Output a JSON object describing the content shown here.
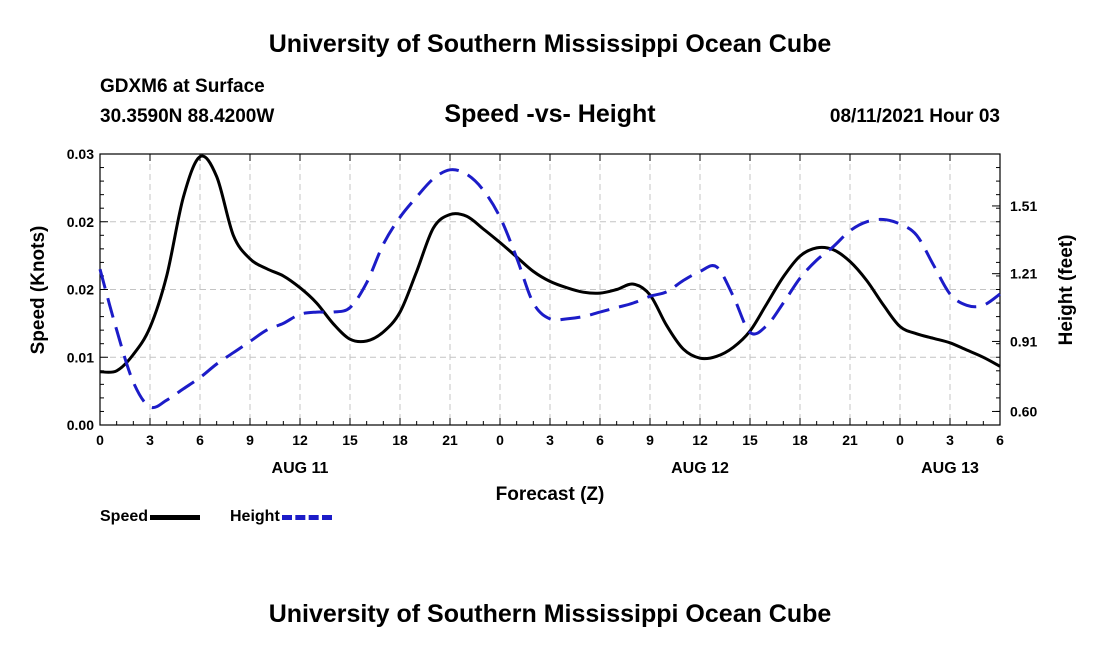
{
  "header": {
    "title": "University of Southern Mississippi Ocean Cube",
    "station": "GDXM6 at Surface",
    "coords": "30.3590N  88.4200W",
    "subtitle": "Speed -vs- Height",
    "datetime": "08/11/2021 Hour 03"
  },
  "footer": {
    "title": "University of Southern Mississippi Ocean Cube"
  },
  "legend": {
    "speed_label": "Speed",
    "height_label": "Height",
    "speed_color": "#000000",
    "height_color": "#1c1cc8"
  },
  "chart_data": {
    "type": "line",
    "title": "Speed -vs- Height",
    "xlabel": "Forecast (Z)",
    "ylabel": "Speed (Knots)",
    "y2label": "Height (feet)",
    "xlim": [
      0,
      54
    ],
    "ylim": [
      0,
      0.03
    ],
    "y2lim": [
      0.54,
      1.74
    ],
    "x_ticks": [
      0,
      3,
      6,
      9,
      12,
      15,
      18,
      21,
      24,
      27,
      30,
      33,
      36,
      39,
      42,
      45,
      48,
      51,
      54
    ],
    "x_tick_labels": [
      "0",
      "3",
      "6",
      "9",
      "12",
      "15",
      "18",
      "21",
      "0",
      "3",
      "6",
      "9",
      "12",
      "15",
      "18",
      "21",
      "0",
      "3",
      "6"
    ],
    "y_ticks": [
      0,
      0.0075,
      0.015,
      0.0225,
      0.03
    ],
    "y_tick_labels": [
      "0.00",
      "0.01",
      "0.02",
      "0.02",
      "0.03"
    ],
    "y2_ticks": [
      0.6,
      0.91,
      1.21,
      1.51
    ],
    "y2_tick_labels": [
      "0.60",
      "0.91",
      "1.21",
      "1.51"
    ],
    "date_labels": [
      {
        "x": 12,
        "label": "AUG 11"
      },
      {
        "x": 36,
        "label": "AUG 12"
      },
      {
        "x": 51,
        "label": "AUG 13"
      }
    ],
    "series": [
      {
        "name": "Speed",
        "axis": "left",
        "style": "solid",
        "x": [
          0,
          1,
          2,
          3,
          4,
          5,
          6,
          7,
          8,
          9,
          10,
          11,
          12,
          13,
          14,
          15,
          16,
          17,
          18,
          19,
          20,
          21,
          22,
          23,
          24,
          25,
          26,
          27,
          28,
          29,
          30,
          31,
          32,
          33,
          34,
          35,
          36,
          37,
          38,
          39,
          40,
          41,
          42,
          43,
          44,
          45,
          46,
          47,
          48,
          49,
          50,
          51,
          52,
          53,
          54
        ],
        "values": [
          0.0059,
          0.006,
          0.0078,
          0.0108,
          0.0165,
          0.0252,
          0.0297,
          0.0275,
          0.021,
          0.0184,
          0.0173,
          0.0165,
          0.0152,
          0.0135,
          0.0112,
          0.0095,
          0.0093,
          0.0103,
          0.0125,
          0.017,
          0.0218,
          0.0233,
          0.0231,
          0.0217,
          0.0202,
          0.0186,
          0.017,
          0.0159,
          0.0152,
          0.0147,
          0.0146,
          0.015,
          0.0156,
          0.0144,
          0.011,
          0.0084,
          0.0074,
          0.0076,
          0.0086,
          0.0104,
          0.0134,
          0.0164,
          0.0187,
          0.0196,
          0.0194,
          0.0181,
          0.016,
          0.0133,
          0.0109,
          0.0101,
          0.0096,
          0.0091,
          0.0083,
          0.0075,
          0.0065
        ]
      },
      {
        "name": "Height",
        "axis": "right",
        "style": "dashed",
        "x": [
          0,
          1,
          2,
          3,
          4,
          5,
          6,
          7,
          8,
          9,
          10,
          11,
          12,
          13,
          14,
          15,
          16,
          17,
          18,
          19,
          20,
          21,
          22,
          23,
          24,
          25,
          26,
          27,
          28,
          29,
          30,
          31,
          32,
          33,
          34,
          35,
          36,
          37,
          38,
          39,
          40,
          41,
          42,
          43,
          44,
          45,
          46,
          47,
          48,
          49,
          50,
          51,
          52,
          53,
          54
        ],
        "values": [
          1.23,
          0.96,
          0.73,
          0.62,
          0.65,
          0.7,
          0.75,
          0.81,
          0.86,
          0.91,
          0.96,
          0.99,
          1.03,
          1.04,
          1.04,
          1.06,
          1.17,
          1.34,
          1.46,
          1.55,
          1.63,
          1.67,
          1.65,
          1.58,
          1.46,
          1.28,
          1.08,
          1.01,
          1.01,
          1.02,
          1.04,
          1.06,
          1.08,
          1.11,
          1.13,
          1.18,
          1.22,
          1.24,
          1.11,
          0.95,
          0.98,
          1.08,
          1.19,
          1.27,
          1.33,
          1.4,
          1.44,
          1.45,
          1.43,
          1.38,
          1.25,
          1.12,
          1.07,
          1.07,
          1.12
        ]
      }
    ]
  }
}
